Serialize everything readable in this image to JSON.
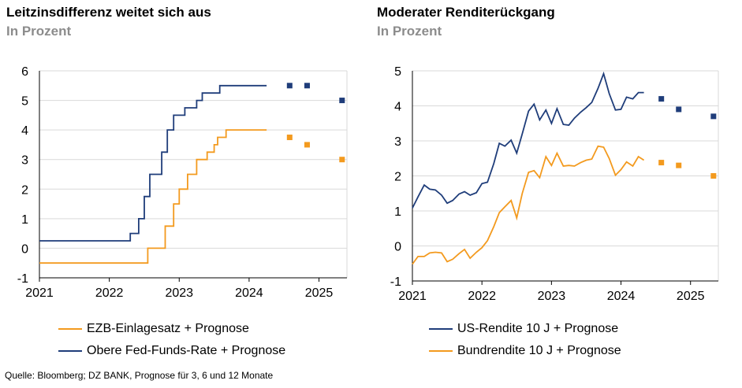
{
  "colors": {
    "navy": "#1f3d7a",
    "orange": "#f39a1e",
    "grid": "#d9d9d9",
    "axis": "#000000"
  },
  "source": "Quelle: Bloomberg; DZ BANK, Prognose für 3, 6 und 12 Monate",
  "chart_data": [
    {
      "type": "line",
      "title": "Leitzinsdifferenz weitet sich aus",
      "subtitle": "In Prozent",
      "xlabel": "",
      "ylabel": "",
      "xlim": [
        2021,
        2025.4
      ],
      "ylim": [
        -1,
        6
      ],
      "yticks": [
        -1,
        0,
        1,
        2,
        3,
        4,
        5,
        6
      ],
      "xticks": [
        2021,
        2022,
        2023,
        2024,
        2025
      ],
      "grid": true,
      "legend_position": "bottom",
      "series": [
        {
          "name": "EZB-Einlagesatz + Prognose",
          "color": "#f39a1e",
          "step": true,
          "x": [
            2021.0,
            2022.5,
            2022.55,
            2022.7,
            2022.8,
            2022.92,
            2023.0,
            2023.12,
            2023.25,
            2023.4,
            2023.5,
            2023.55,
            2023.67,
            2024.25
          ],
          "y": [
            -0.5,
            -0.5,
            0.0,
            0.0,
            0.75,
            1.5,
            2.0,
            2.5,
            3.0,
            3.25,
            3.5,
            3.75,
            4.0,
            4.0
          ],
          "forecast": {
            "x": [
              2024.58,
              2024.83,
              2025.33
            ],
            "y": [
              3.75,
              3.5,
              3.0
            ]
          }
        },
        {
          "name": "Obere Fed-Funds-Rate + Prognose",
          "color": "#1f3d7a",
          "step": true,
          "x": [
            2021.0,
            2022.2,
            2022.3,
            2022.42,
            2022.5,
            2022.58,
            2022.75,
            2022.83,
            2022.92,
            2023.08,
            2023.25,
            2023.33,
            2023.5,
            2023.58,
            2024.25
          ],
          "y": [
            0.25,
            0.25,
            0.5,
            1.0,
            1.75,
            2.5,
            3.25,
            4.0,
            4.5,
            4.75,
            5.0,
            5.25,
            5.25,
            5.5,
            5.5
          ],
          "forecast": {
            "x": [
              2024.58,
              2024.83,
              2025.33
            ],
            "y": [
              5.5,
              5.5,
              5.0
            ]
          }
        }
      ]
    },
    {
      "type": "line",
      "title": "Moderater Renditerückgang",
      "subtitle": "In Prozent",
      "xlabel": "",
      "ylabel": "",
      "xlim": [
        2021,
        2025.4
      ],
      "ylim": [
        -1,
        5
      ],
      "yticks": [
        -1,
        0,
        1,
        2,
        3,
        4,
        5
      ],
      "xticks": [
        2021,
        2022,
        2023,
        2024,
        2025
      ],
      "grid": true,
      "legend_position": "bottom",
      "series": [
        {
          "name": "US-Rendite 10 J + Prognose",
          "color": "#1f3d7a",
          "step": false,
          "x": [
            2021.0,
            2021.08,
            2021.17,
            2021.25,
            2021.33,
            2021.42,
            2021.5,
            2021.58,
            2021.67,
            2021.75,
            2021.83,
            2021.92,
            2022.0,
            2022.08,
            2022.17,
            2022.25,
            2022.33,
            2022.42,
            2022.5,
            2022.58,
            2022.67,
            2022.75,
            2022.83,
            2022.92,
            2023.0,
            2023.08,
            2023.17,
            2023.25,
            2023.33,
            2023.42,
            2023.5,
            2023.58,
            2023.67,
            2023.75,
            2023.83,
            2023.92,
            2024.0,
            2024.08,
            2024.17,
            2024.25,
            2024.33
          ],
          "y": [
            1.08,
            1.4,
            1.74,
            1.62,
            1.6,
            1.45,
            1.22,
            1.3,
            1.48,
            1.55,
            1.45,
            1.52,
            1.78,
            1.82,
            2.35,
            2.93,
            2.85,
            3.02,
            2.65,
            3.2,
            3.85,
            4.05,
            3.6,
            3.88,
            3.5,
            3.92,
            3.47,
            3.45,
            3.65,
            3.82,
            3.95,
            4.1,
            4.5,
            4.92,
            4.35,
            3.88,
            3.9,
            4.25,
            4.2,
            4.38,
            4.38
          ],
          "forecast": {
            "x": [
              2024.58,
              2024.83,
              2025.33
            ],
            "y": [
              4.2,
              3.9,
              3.7
            ]
          }
        },
        {
          "name": "Bundrendite 10 J + Prognose",
          "color": "#f39a1e",
          "step": false,
          "x": [
            2021.0,
            2021.08,
            2021.17,
            2021.25,
            2021.33,
            2021.42,
            2021.5,
            2021.58,
            2021.67,
            2021.75,
            2021.83,
            2021.92,
            2022.0,
            2022.08,
            2022.17,
            2022.25,
            2022.33,
            2022.42,
            2022.5,
            2022.58,
            2022.67,
            2022.75,
            2022.83,
            2022.92,
            2023.0,
            2023.08,
            2023.17,
            2023.25,
            2023.33,
            2023.42,
            2023.5,
            2023.58,
            2023.67,
            2023.75,
            2023.83,
            2023.92,
            2024.0,
            2024.08,
            2024.17,
            2024.25,
            2024.33
          ],
          "y": [
            -0.52,
            -0.3,
            -0.3,
            -0.2,
            -0.18,
            -0.2,
            -0.45,
            -0.38,
            -0.22,
            -0.1,
            -0.35,
            -0.18,
            -0.05,
            0.15,
            0.55,
            0.95,
            1.12,
            1.3,
            0.8,
            1.5,
            2.1,
            2.15,
            1.95,
            2.55,
            2.3,
            2.65,
            2.28,
            2.3,
            2.28,
            2.38,
            2.45,
            2.48,
            2.85,
            2.82,
            2.5,
            2.02,
            2.18,
            2.4,
            2.28,
            2.55,
            2.45
          ],
          "forecast": {
            "x": [
              2024.58,
              2024.83,
              2025.33
            ],
            "y": [
              2.38,
              2.3,
              2.0
            ]
          }
        }
      ]
    }
  ]
}
